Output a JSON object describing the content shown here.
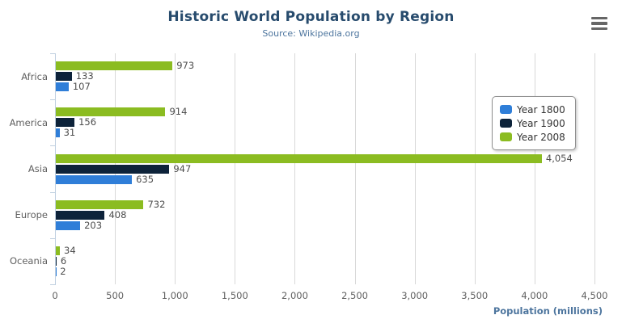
{
  "header": {
    "menu_icon": "hamburger-menu"
  },
  "chart_data": {
    "type": "bar",
    "orientation": "horizontal",
    "title": "Historic World Population by Region",
    "subtitle": "Source: Wikipedia.org",
    "xlabel": "Population (millions)",
    "categories": [
      "Africa",
      "America",
      "Asia",
      "Europe",
      "Oceania"
    ],
    "series": [
      {
        "name": "Year 1800",
        "color": "#2f7ed8",
        "values": [
          107,
          31,
          635,
          203,
          2
        ]
      },
      {
        "name": "Year 1900",
        "color": "#0d233a",
        "values": [
          133,
          156,
          947,
          408,
          6
        ]
      },
      {
        "name": "Year 2008",
        "color": "#8bbc21",
        "values": [
          973,
          914,
          4054,
          732,
          34
        ]
      }
    ],
    "bar_display_order_top_to_bottom": [
      "Year 2008",
      "Year 1900",
      "Year 1800"
    ],
    "xlim": [
      0,
      4500
    ],
    "x_ticks": [
      0,
      500,
      1000,
      1500,
      2000,
      2500,
      3000,
      3500,
      4000,
      4500
    ],
    "grid": true,
    "data_labels": true,
    "legend_position": "right",
    "axis_colors": {
      "grid": "#d8d8d8",
      "axis_line": "#c0d0e0",
      "labels": "#606060",
      "title_text": "#274b6d",
      "subtitle_text": "#4d759e"
    }
  }
}
